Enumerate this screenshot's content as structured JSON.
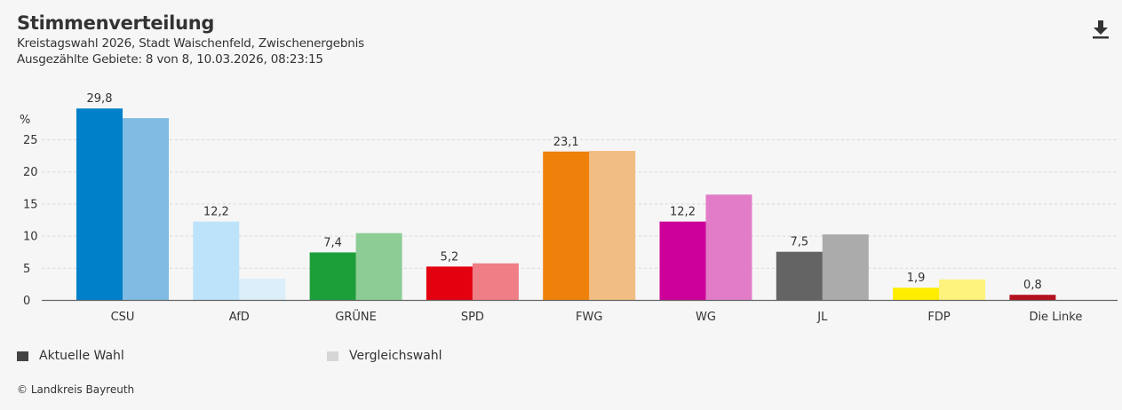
{
  "header": {
    "title": "Stimmenverteilung",
    "subtitle1": "Kreistagswahl 2026, Stadt Waischenfeld, Zwischenergebnis",
    "subtitle2": "Ausgezählte Gebiete: 8 von 8, 10.03.2026, 08:23:15",
    "download_icon": "download-icon"
  },
  "legend": {
    "current": {
      "label": "Aktuelle Wahl",
      "color": "#444444"
    },
    "comparison": {
      "label": "Vergleichswahl",
      "color": "#d6d6d6"
    }
  },
  "footer": {
    "copyright": "© Landkreis Bayreuth"
  },
  "chart_data": {
    "type": "bar",
    "title": "Stimmenverteilung",
    "ylabel": "%",
    "ylim": [
      0,
      30
    ],
    "yticks": [
      0,
      5,
      10,
      15,
      20,
      25
    ],
    "ytick_labels": [
      "0",
      "5",
      "10",
      "15",
      "20",
      "25"
    ],
    "grid": true,
    "legend_position": "bottom-left",
    "categories": [
      "CSU",
      "AfD",
      "GRÜNE",
      "SPD",
      "FWG",
      "WG",
      "JL",
      "FDP",
      "Die Linke"
    ],
    "series": [
      {
        "name": "Aktuelle Wahl",
        "values": [
          29.8,
          12.2,
          7.4,
          5.2,
          23.1,
          12.2,
          7.5,
          1.9,
          0.8
        ],
        "labels": [
          "29,8",
          "12,2",
          "7,4",
          "5,2",
          "23,1",
          "12,2",
          "7,5",
          "1,9",
          "0,8"
        ],
        "colors": [
          "#0080c9",
          "#bde3fa",
          "#1c9f38",
          "#e3000f",
          "#ef810a",
          "#cc0099",
          "#646464",
          "#ffed00",
          "#b5111e"
        ]
      },
      {
        "name": "Vergleichswahl",
        "values": [
          28.3,
          3.3,
          10.4,
          5.7,
          23.2,
          16.4,
          10.2,
          3.2,
          null
        ],
        "colors": [
          "#7fbbe2",
          "#dbeefa",
          "#8ccd96",
          "#ef7e86",
          "#f2bd82",
          "#e27cc8",
          "#ababab",
          "#fdf37d",
          "#d8878e"
        ]
      }
    ]
  }
}
